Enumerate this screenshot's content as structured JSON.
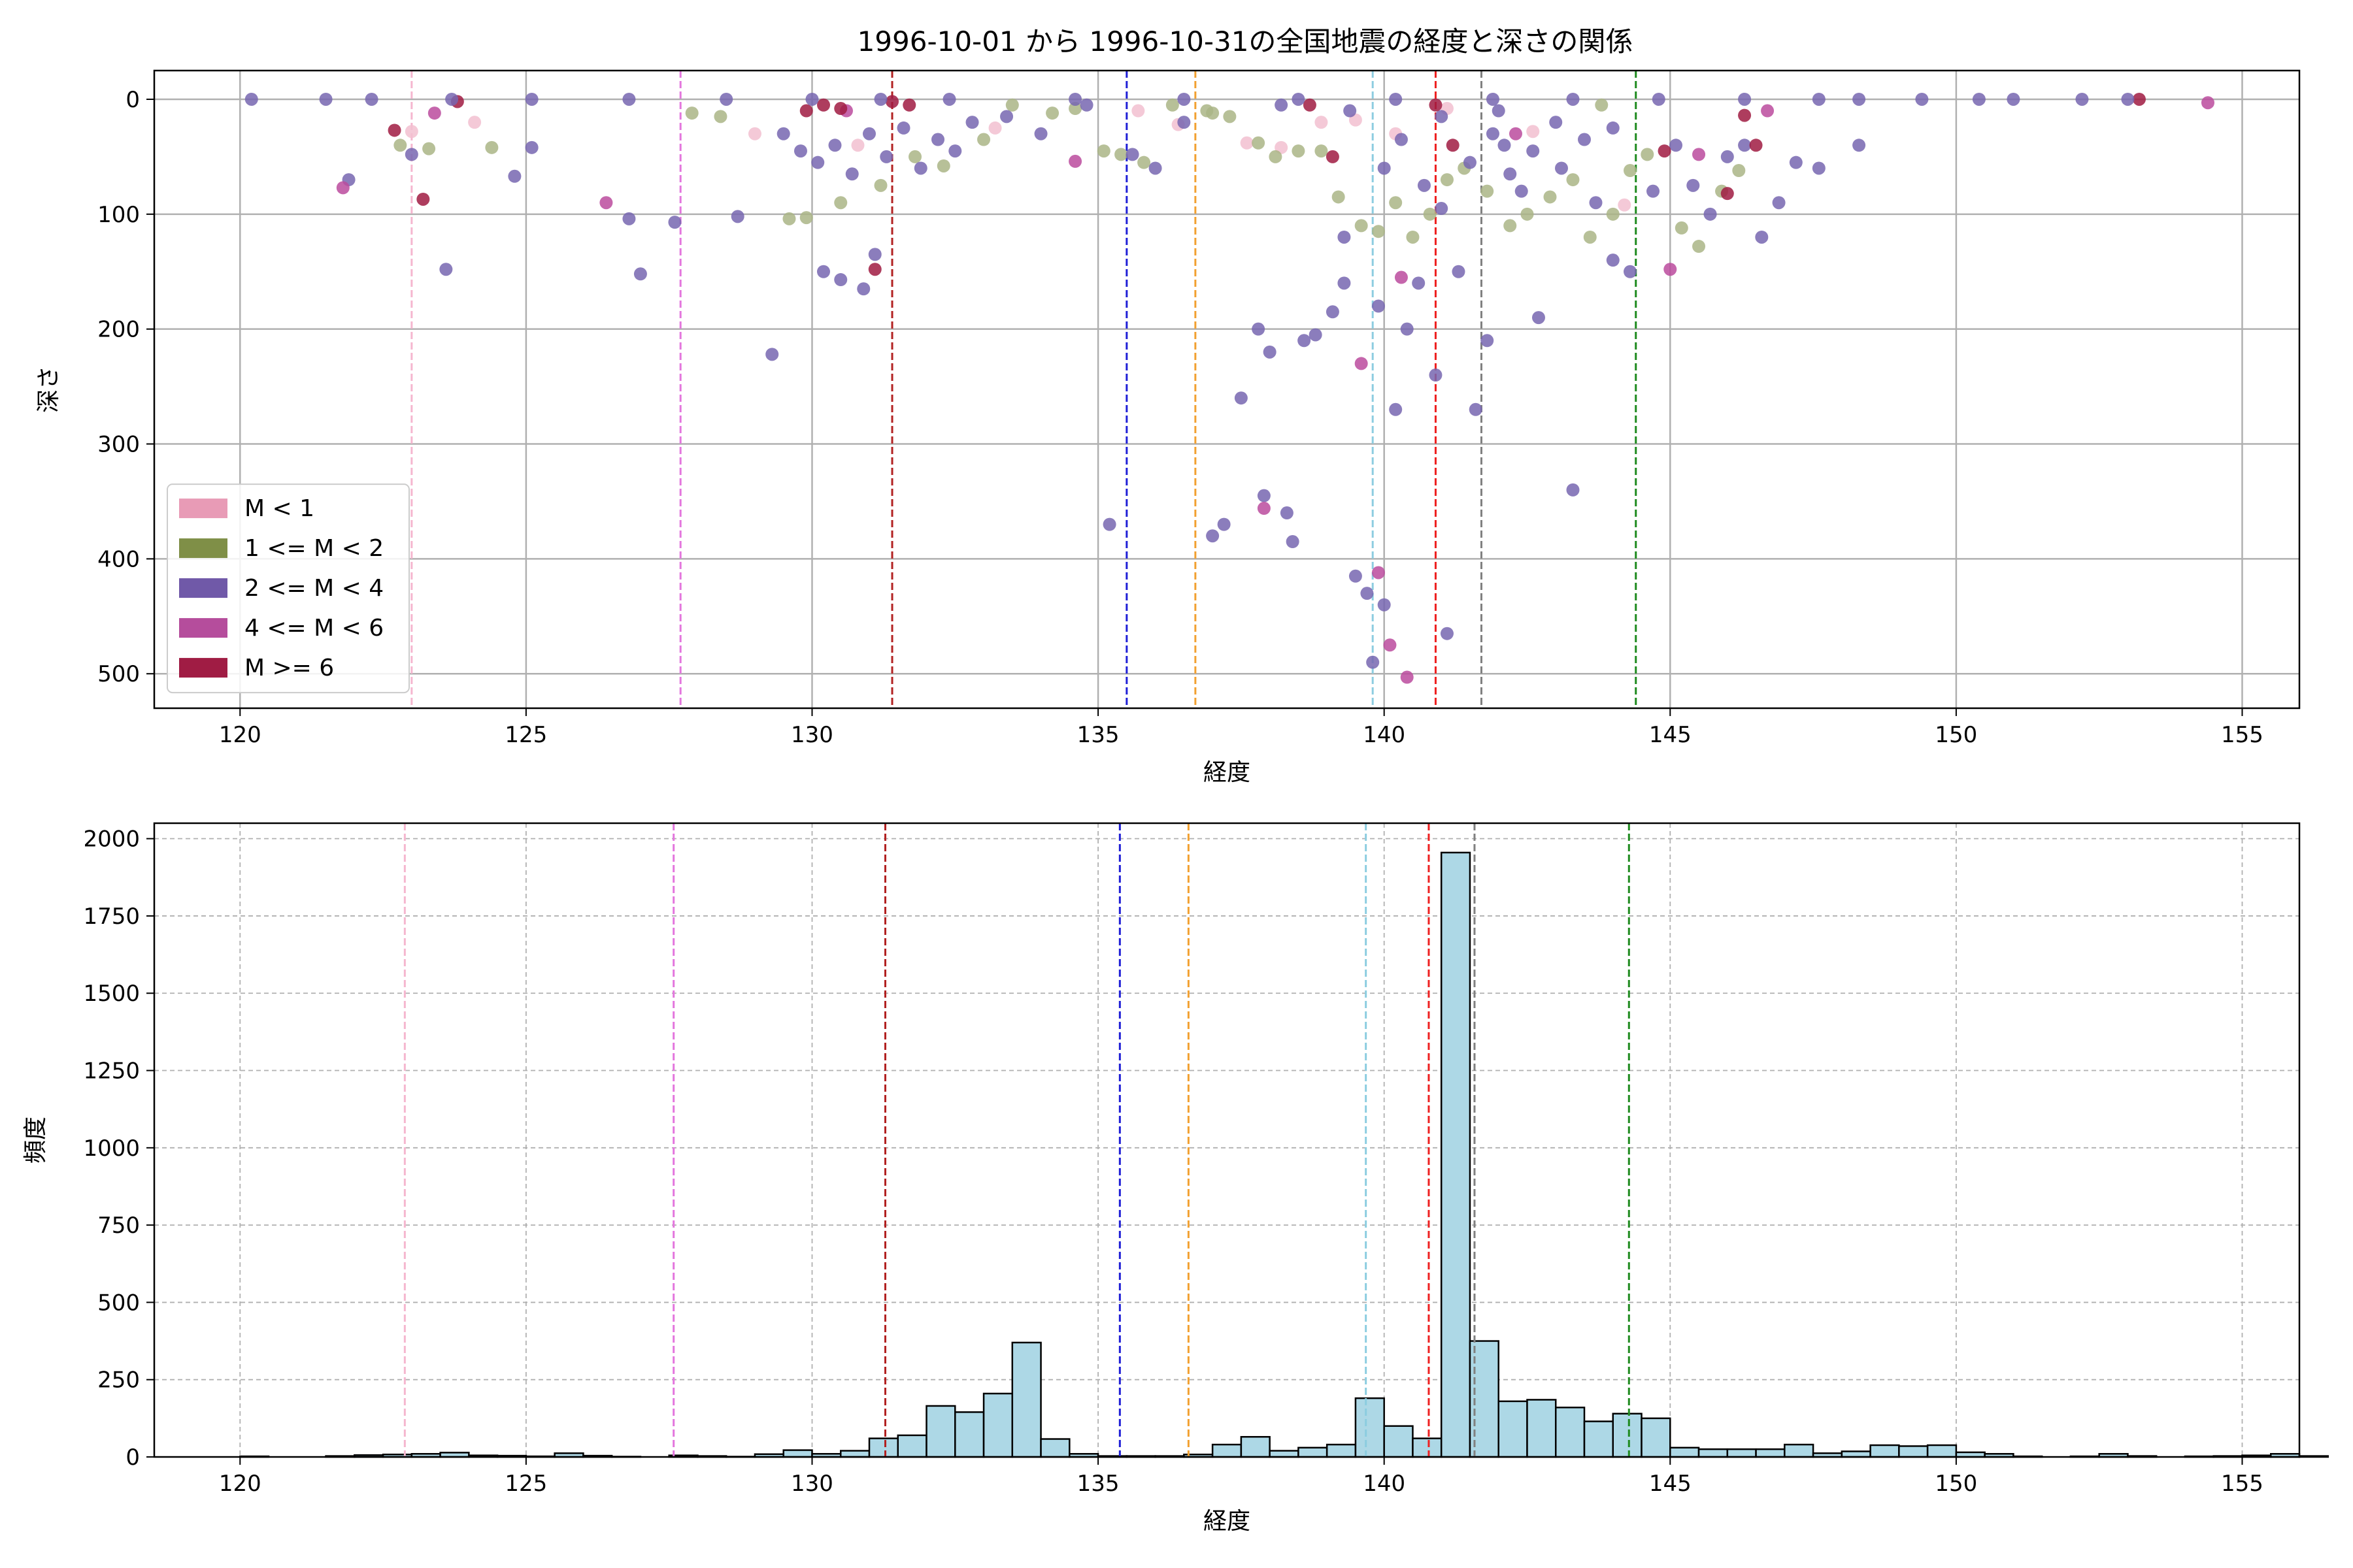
{
  "title": "1996-10-01 から 1996-10-31の全国地震の経度と深さの関係",
  "chart_data": [
    {
      "type": "scatter",
      "xlabel": "経度",
      "ylabel": "深さ",
      "xlim": [
        118.5,
        156.0
      ],
      "ylim": [
        530,
        -25
      ],
      "y_inverted": true,
      "grid": true,
      "legend_position": "lower-left",
      "xticks": [
        120,
        125,
        130,
        135,
        140,
        145,
        150,
        155
      ],
      "yticks": [
        0,
        100,
        200,
        300,
        400,
        500
      ],
      "legend": [
        {
          "label": "M < 1",
          "color": "#e89bb6"
        },
        {
          "label": "1 <= M < 2",
          "color": "#7f8f47"
        },
        {
          "label": "2 <= M < 4",
          "color": "#7059a8"
        },
        {
          "label": "4 <= M < 6",
          "color": "#b54d9c"
        },
        {
          "label": "M >= 6",
          "color": "#a01c44"
        }
      ],
      "series": [
        {
          "class": "M < 1",
          "color": "#f2bfd0",
          "points": [
            [
              123.0,
              28
            ],
            [
              124.1,
              20
            ],
            [
              129.0,
              30
            ],
            [
              130.8,
              40
            ],
            [
              133.2,
              25
            ],
            [
              135.7,
              10
            ],
            [
              136.4,
              22
            ],
            [
              137.6,
              38
            ],
            [
              138.2,
              42
            ],
            [
              138.9,
              20
            ],
            [
              139.5,
              18
            ],
            [
              140.2,
              30
            ],
            [
              141.1,
              8
            ],
            [
              142.6,
              28
            ],
            [
              144.2,
              92
            ]
          ]
        },
        {
          "class": "1 <= M < 2",
          "color": "#aab586",
          "points": [
            [
              122.8,
              40
            ],
            [
              123.3,
              43
            ],
            [
              124.4,
              42
            ],
            [
              127.9,
              12
            ],
            [
              128.4,
              15
            ],
            [
              129.6,
              104
            ],
            [
              129.9,
              103
            ],
            [
              130.5,
              90
            ],
            [
              131.2,
              75
            ],
            [
              131.8,
              50
            ],
            [
              132.3,
              58
            ],
            [
              133.0,
              35
            ],
            [
              134.2,
              12
            ],
            [
              135.1,
              45
            ],
            [
              135.4,
              48
            ],
            [
              135.8,
              55
            ],
            [
              136.3,
              5
            ],
            [
              136.9,
              10
            ],
            [
              137.3,
              15
            ],
            [
              137.8,
              38
            ],
            [
              138.1,
              50
            ],
            [
              138.5,
              45
            ],
            [
              138.9,
              45
            ],
            [
              139.2,
              85
            ],
            [
              139.6,
              110
            ],
            [
              139.9,
              115
            ],
            [
              140.2,
              90
            ],
            [
              140.5,
              120
            ],
            [
              140.8,
              100
            ],
            [
              141.1,
              70
            ],
            [
              141.4,
              60
            ],
            [
              141.8,
              80
            ],
            [
              142.2,
              110
            ],
            [
              142.5,
              100
            ],
            [
              142.9,
              85
            ],
            [
              143.3,
              70
            ],
            [
              143.6,
              120
            ],
            [
              144.0,
              100
            ],
            [
              144.3,
              62
            ],
            [
              144.6,
              48
            ],
            [
              145.2,
              112
            ],
            [
              145.5,
              128
            ],
            [
              145.9,
              80
            ],
            [
              146.2,
              62
            ],
            [
              133.5,
              5
            ],
            [
              134.6,
              8
            ],
            [
              137.0,
              12
            ],
            [
              143.8,
              5
            ]
          ]
        },
        {
          "class": "2 <= M < 4",
          "color": "#7766b0",
          "points": [
            [
              121.9,
              70
            ],
            [
              123.0,
              48
            ],
            [
              123.6,
              148
            ],
            [
              124.8,
              67
            ],
            [
              125.1,
              42
            ],
            [
              126.8,
              104
            ],
            [
              127.0,
              152
            ],
            [
              127.6,
              107
            ],
            [
              128.7,
              102
            ],
            [
              129.3,
              222
            ],
            [
              130.2,
              150
            ],
            [
              130.5,
              157
            ],
            [
              130.9,
              165
            ],
            [
              131.1,
              135
            ],
            [
              129.5,
              30
            ],
            [
              129.8,
              45
            ],
            [
              130.1,
              55
            ],
            [
              130.4,
              40
            ],
            [
              130.7,
              65
            ],
            [
              131.0,
              30
            ],
            [
              131.3,
              50
            ],
            [
              131.6,
              25
            ],
            [
              131.9,
              60
            ],
            [
              132.2,
              35
            ],
            [
              132.5,
              45
            ],
            [
              132.8,
              20
            ],
            [
              133.4,
              15
            ],
            [
              134.0,
              30
            ],
            [
              134.8,
              5
            ],
            [
              135.2,
              370
            ],
            [
              135.6,
              48
            ],
            [
              136.0,
              60
            ],
            [
              136.5,
              20
            ],
            [
              137.0,
              380
            ],
            [
              137.2,
              370
            ],
            [
              137.5,
              260
            ],
            [
              137.8,
              200
            ],
            [
              137.9,
              345
            ],
            [
              138.0,
              220
            ],
            [
              138.3,
              360
            ],
            [
              138.4,
              385
            ],
            [
              138.6,
              210
            ],
            [
              138.8,
              205
            ],
            [
              139.1,
              185
            ],
            [
              139.3,
              160
            ],
            [
              139.5,
              415
            ],
            [
              139.7,
              430
            ],
            [
              139.8,
              490
            ],
            [
              139.9,
              180
            ],
            [
              140.0,
              440
            ],
            [
              140.2,
              270
            ],
            [
              140.4,
              200
            ],
            [
              140.6,
              160
            ],
            [
              140.9,
              240
            ],
            [
              141.1,
              465
            ],
            [
              141.3,
              150
            ],
            [
              141.6,
              270
            ],
            [
              141.8,
              210
            ],
            [
              142.1,
              40
            ],
            [
              142.4,
              80
            ],
            [
              142.7,
              190
            ],
            [
              143.1,
              60
            ],
            [
              143.3,
              340
            ],
            [
              143.7,
              90
            ],
            [
              144.0,
              140
            ],
            [
              144.3,
              150
            ],
            [
              144.7,
              80
            ],
            [
              145.1,
              40
            ],
            [
              145.4,
              75
            ],
            [
              145.7,
              100
            ],
            [
              146.0,
              50
            ],
            [
              146.3,
              40
            ],
            [
              146.6,
              120
            ],
            [
              146.9,
              90
            ],
            [
              147.2,
              55
            ],
            [
              147.6,
              60
            ],
            [
              148.3,
              40
            ],
            [
              139.3,
              120
            ],
            [
              140.0,
              60
            ],
            [
              140.3,
              35
            ],
            [
              140.7,
              75
            ],
            [
              141.0,
              95
            ],
            [
              141.5,
              55
            ],
            [
              141.9,
              30
            ],
            [
              142.2,
              65
            ],
            [
              142.6,
              45
            ],
            [
              143.0,
              20
            ],
            [
              143.5,
              35
            ],
            [
              144.0,
              25
            ],
            [
              138.2,
              5
            ],
            [
              139.4,
              10
            ],
            [
              141.0,
              15
            ],
            [
              142.0,
              10
            ]
          ]
        },
        {
          "class": "4 <= M < 6",
          "color": "#bb4b9d",
          "points": [
            [
              121.8,
              77
            ],
            [
              123.4,
              12
            ],
            [
              126.4,
              90
            ],
            [
              130.6,
              10
            ],
            [
              134.6,
              54
            ],
            [
              137.9,
              356
            ],
            [
              139.6,
              230
            ],
            [
              139.9,
              412
            ],
            [
              140.1,
              475
            ],
            [
              140.3,
              155
            ],
            [
              140.4,
              503
            ],
            [
              142.3,
              30
            ],
            [
              145.0,
              148
            ],
            [
              145.5,
              48
            ],
            [
              146.7,
              10
            ],
            [
              154.4,
              3
            ]
          ]
        },
        {
          "class": "M >= 6",
          "color": "#a01b42",
          "points": [
            [
              122.7,
              27
            ],
            [
              123.2,
              87
            ],
            [
              123.8,
              2
            ],
            [
              129.9,
              10
            ],
            [
              130.2,
              5
            ],
            [
              130.5,
              8
            ],
            [
              131.1,
              148
            ],
            [
              131.4,
              2
            ],
            [
              131.7,
              5
            ],
            [
              138.7,
              5
            ],
            [
              139.1,
              50
            ],
            [
              140.9,
              5
            ],
            [
              141.2,
              40
            ],
            [
              144.9,
              45
            ],
            [
              146.0,
              82
            ],
            [
              146.3,
              14
            ],
            [
              146.5,
              40
            ],
            [
              153.2,
              0
            ]
          ]
        },
        {
          "class": "2 <= M < 4",
          "color": "#7766b0",
          "shallow_band": [
            [
              120.2,
              0
            ],
            [
              121.5,
              0
            ],
            [
              122.3,
              0
            ],
            [
              123.7,
              0
            ],
            [
              125.1,
              0
            ],
            [
              126.8,
              0
            ],
            [
              128.5,
              0
            ],
            [
              130.0,
              0
            ],
            [
              131.2,
              0
            ],
            [
              132.4,
              0
            ],
            [
              134.6,
              0
            ],
            [
              136.5,
              0
            ],
            [
              138.5,
              0
            ],
            [
              140.2,
              0
            ],
            [
              141.9,
              0
            ],
            [
              143.3,
              0
            ],
            [
              144.8,
              0
            ],
            [
              146.3,
              0
            ],
            [
              147.6,
              0
            ],
            [
              148.3,
              0
            ],
            [
              149.4,
              0
            ],
            [
              150.4,
              0
            ],
            [
              151.0,
              0
            ],
            [
              152.2,
              0
            ],
            [
              153.0,
              0
            ]
          ]
        }
      ]
    },
    {
      "type": "histogram",
      "xlabel": "経度",
      "ylabel": "頻度",
      "xlim": [
        118.5,
        156.0
      ],
      "ylim": [
        0,
        2050
      ],
      "grid": true,
      "bar_color": "#add8e6",
      "xticks": [
        120,
        125,
        130,
        135,
        140,
        145,
        150,
        155
      ],
      "yticks": [
        0,
        250,
        500,
        750,
        1000,
        1250,
        1500,
        1750,
        2000
      ],
      "bin_width": 0.5,
      "bin_start": 120.0,
      "values": [
        2,
        0,
        0,
        3,
        6,
        8,
        10,
        14,
        5,
        4,
        2,
        12,
        4,
        1,
        0,
        5,
        3,
        1,
        9,
        22,
        10,
        20,
        60,
        70,
        165,
        145,
        205,
        370,
        58,
        10,
        3,
        3,
        3,
        8,
        40,
        65,
        20,
        30,
        40,
        190,
        100,
        60,
        1955,
        375,
        180,
        185,
        160,
        115,
        140,
        125,
        30,
        25,
        25,
        25,
        40,
        12,
        18,
        38,
        35,
        38,
        15,
        10,
        2,
        0,
        2,
        10,
        3,
        0,
        2,
        3,
        5,
        10,
        3,
        0,
        0,
        0,
        0,
        0,
        2,
        0
      ]
    }
  ],
  "reference_lines": [
    {
      "x": 123.0,
      "color": "#f5b6cf"
    },
    {
      "x": 127.7,
      "color": "#e376dd"
    },
    {
      "x": 131.4,
      "color": "#b22222"
    },
    {
      "x": 135.5,
      "color": "#1f1fd6"
    },
    {
      "x": 136.7,
      "color": "#f2a030"
    },
    {
      "x": 139.8,
      "color": "#8ccde0"
    },
    {
      "x": 140.9,
      "color": "#ee2020"
    },
    {
      "x": 141.7,
      "color": "#808080"
    },
    {
      "x": 144.4,
      "color": "#1e8a1e"
    }
  ]
}
